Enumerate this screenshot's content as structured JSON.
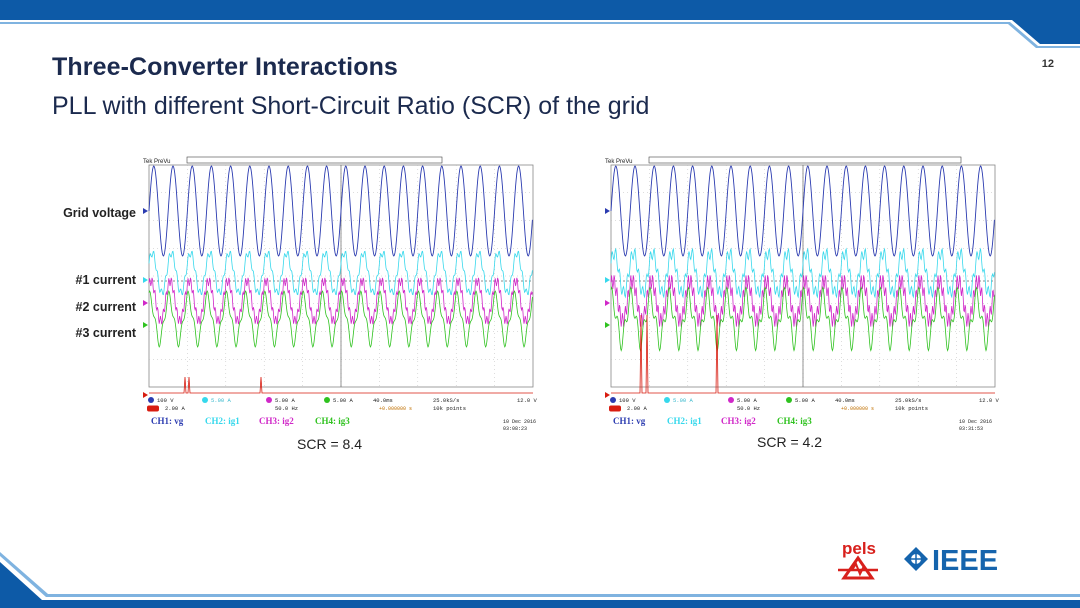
{
  "slide": {
    "title": "Three-Converter Interactions",
    "subtitle": "PLL with different Short-Circuit Ratio (SCR) of the grid",
    "page_number": "12"
  },
  "channel_labels": {
    "grid_voltage": "Grid voltage",
    "current1": "#1 current",
    "current2": "#2 current",
    "current3": "#3 current"
  },
  "colors": {
    "ch1": "#2b3bb0",
    "ch2": "#36d8ec",
    "ch3": "#d028c8",
    "ch4": "#2fc21f",
    "math": "#d81c10",
    "band": "#0d5aa7"
  },
  "scopes": [
    {
      "header": "Tek PreVu",
      "scr_caption": "SCR = 8.4",
      "settings": {
        "ch1": "100 V",
        "ch2": "5.00 A",
        "ch3": "5.00 A",
        "ch4": "5.00 A",
        "math": "2.00 A",
        "math_freq": "50.0 Hz",
        "timebase": "40.0ms",
        "trigger_pos": "+0.000000 s",
        "sample_rate": "25.0kS/s",
        "record_length": "10k points",
        "trigger_level": "12.0 V",
        "date": "10 Dec 2016",
        "time": "03:08:23"
      },
      "legend": [
        "CH1: vg",
        "CH2: ig1",
        "CH3: ig2",
        "CH4: ig3"
      ]
    },
    {
      "header": "Tek PreVu",
      "scr_caption": "SCR = 4.2",
      "settings": {
        "ch1": "100 V",
        "ch2": "5.00 A",
        "ch3": "5.00 A",
        "ch4": "5.00 A",
        "math": "2.00 A",
        "math_freq": "50.0 Hz",
        "timebase": "40.0ms",
        "trigger_pos": "+0.000000 s",
        "sample_rate": "25.0kS/s",
        "record_length": "10k points",
        "trigger_level": "12.0 V",
        "date": "10 Dec 2016",
        "time": "03:31:53"
      },
      "legend": [
        "CH1: vg",
        "CH2: ig1",
        "CH3: ig2",
        "CH4: ig3"
      ]
    }
  ],
  "logos": {
    "pels": "pels",
    "ieee": "IEEE"
  }
}
